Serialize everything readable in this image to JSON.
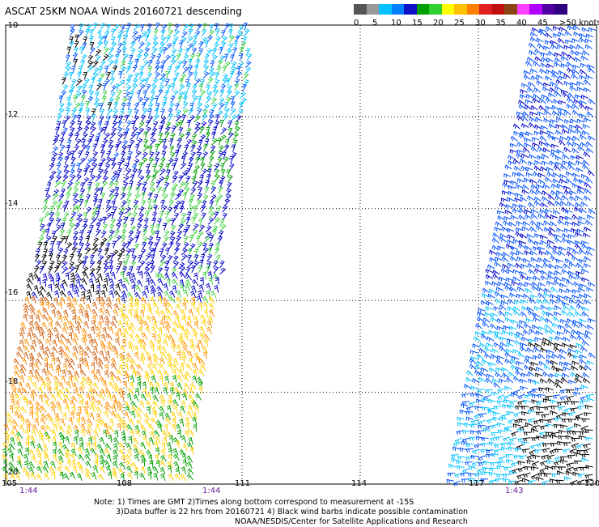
{
  "title": "ASCAT 25KM NOAA Winds 20160721 descending",
  "colorbar": {
    "labels": [
      "0",
      "5",
      "10",
      "15",
      "20",
      "25",
      "30",
      "35",
      "40",
      "45",
      ">50 knots"
    ],
    "colors": [
      "#555555",
      "#999999",
      "#00c0ff",
      "#0080ff",
      "#1010c8",
      "#00a000",
      "#30d030",
      "#ffff00",
      "#ffc000",
      "#ff8000",
      "#e02020",
      "#c01010",
      "#8b4513",
      "#ff40ff",
      "#b000ff",
      "#5000a0",
      "#300080"
    ]
  },
  "map": {
    "lat_labels": [
      "-10",
      "-12",
      "-14",
      "-16",
      "-18",
      "-20"
    ],
    "lon_labels": [
      "105",
      "108",
      "111",
      "114",
      "117",
      "120"
    ],
    "pass_times": [
      "1:44",
      "1:44",
      "1:43"
    ]
  },
  "legend_colors": {
    "gray": "#666666",
    "light_blue": "#00c0ff",
    "blue": "#0050ff",
    "dark_blue": "#0000c8",
    "green": "#00a000",
    "light_green": "#40d040",
    "yellow": "#ffd000",
    "orange": "#ff9000",
    "dark_orange": "#d06010",
    "black": "#000000"
  },
  "notes": {
    "line1": "Note: 1) Times are GMT 2)Times along bottom correspond to measurement at -15S",
    "line2": "3)Data buffer is 22 hrs from 20160721 4) Black wind barbs indicate possible contamination",
    "line3": "NOAA/NESDIS/Center for Satellite Applications and Research"
  }
}
